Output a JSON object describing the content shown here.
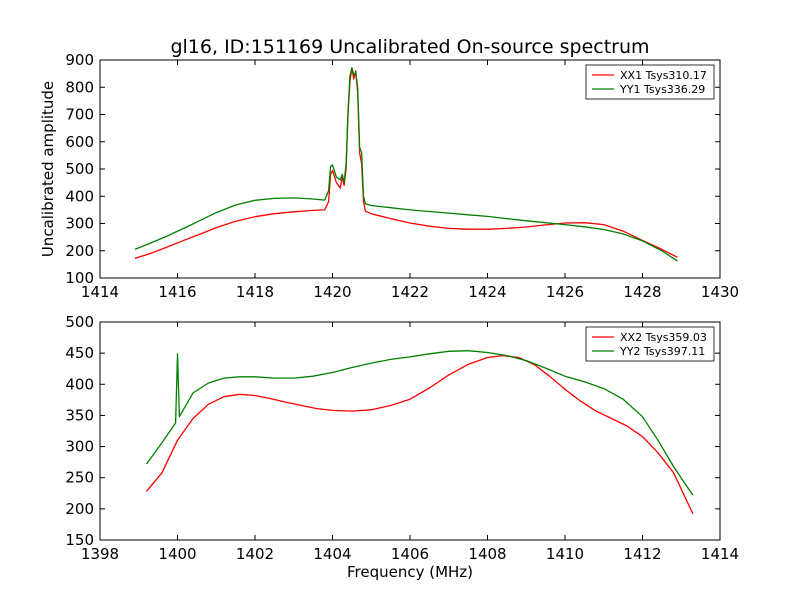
{
  "chart_data": [
    {
      "type": "line",
      "title": "gl16, ID:151169 Uncalibrated On-source spectrum",
      "xlabel": "",
      "ylabel": "Uncalibrated amplitude",
      "xlim": [
        1414,
        1430
      ],
      "ylim": [
        100,
        900
      ],
      "xticks": [
        1414,
        1416,
        1418,
        1420,
        1422,
        1424,
        1426,
        1428,
        1430
      ],
      "yticks": [
        100,
        200,
        300,
        400,
        500,
        600,
        700,
        800,
        900
      ],
      "legend_position": "top-right",
      "series": [
        {
          "name": "XX1 Tsys310.17",
          "color": "#ff0000",
          "points": [
            [
              1414.9,
              172
            ],
            [
              1415.3,
              190
            ],
            [
              1415.7,
              212
            ],
            [
              1416.2,
              240
            ],
            [
              1416.6,
              262
            ],
            [
              1417.0,
              285
            ],
            [
              1417.5,
              308
            ],
            [
              1418.0,
              325
            ],
            [
              1418.5,
              336
            ],
            [
              1419.0,
              343
            ],
            [
              1419.5,
              348
            ],
            [
              1419.8,
              350
            ],
            [
              1419.9,
              380
            ],
            [
              1419.95,
              480
            ],
            [
              1420.0,
              495
            ],
            [
              1420.1,
              450
            ],
            [
              1420.2,
              430
            ],
            [
              1420.25,
              470
            ],
            [
              1420.3,
              440
            ],
            [
              1420.35,
              500
            ],
            [
              1420.4,
              700
            ],
            [
              1420.45,
              820
            ],
            [
              1420.5,
              870
            ],
            [
              1420.55,
              830
            ],
            [
              1420.6,
              860
            ],
            [
              1420.65,
              780
            ],
            [
              1420.7,
              560
            ],
            [
              1420.75,
              520
            ],
            [
              1420.8,
              380
            ],
            [
              1420.85,
              345
            ],
            [
              1421.0,
              336
            ],
            [
              1421.5,
              318
            ],
            [
              1422.0,
              302
            ],
            [
              1422.5,
              290
            ],
            [
              1423.0,
              282
            ],
            [
              1423.5,
              279
            ],
            [
              1424.0,
              279
            ],
            [
              1424.5,
              282
            ],
            [
              1425.0,
              287
            ],
            [
              1425.5,
              295
            ],
            [
              1426.0,
              302
            ],
            [
              1426.5,
              303
            ],
            [
              1427.0,
              296
            ],
            [
              1427.5,
              272
            ],
            [
              1428.0,
              238
            ],
            [
              1428.5,
              205
            ],
            [
              1428.9,
              176
            ]
          ]
        },
        {
          "name": "YY1 Tsys336.29",
          "color": "#008000",
          "points": [
            [
              1414.9,
              205
            ],
            [
              1415.3,
              228
            ],
            [
              1415.7,
              252
            ],
            [
              1416.2,
              285
            ],
            [
              1416.6,
              312
            ],
            [
              1417.0,
              340
            ],
            [
              1417.5,
              368
            ],
            [
              1418.0,
              385
            ],
            [
              1418.5,
              392
            ],
            [
              1419.0,
              394
            ],
            [
              1419.5,
              390
            ],
            [
              1419.8,
              386
            ],
            [
              1419.9,
              420
            ],
            [
              1419.95,
              510
            ],
            [
              1420.0,
              515
            ],
            [
              1420.1,
              470
            ],
            [
              1420.2,
              460
            ],
            [
              1420.25,
              480
            ],
            [
              1420.3,
              450
            ],
            [
              1420.35,
              520
            ],
            [
              1420.4,
              710
            ],
            [
              1420.45,
              840
            ],
            [
              1420.5,
              872
            ],
            [
              1420.55,
              845
            ],
            [
              1420.6,
              855
            ],
            [
              1420.65,
              800
            ],
            [
              1420.7,
              580
            ],
            [
              1420.75,
              560
            ],
            [
              1420.8,
              400
            ],
            [
              1420.85,
              372
            ],
            [
              1421.0,
              366
            ],
            [
              1421.5,
              358
            ],
            [
              1422.0,
              350
            ],
            [
              1422.5,
              344
            ],
            [
              1423.0,
              338
            ],
            [
              1423.5,
              332
            ],
            [
              1424.0,
              326
            ],
            [
              1424.5,
              318
            ],
            [
              1425.0,
              310
            ],
            [
              1425.5,
              303
            ],
            [
              1426.0,
              296
            ],
            [
              1426.5,
              288
            ],
            [
              1427.0,
              278
            ],
            [
              1427.5,
              262
            ],
            [
              1428.0,
              236
            ],
            [
              1428.5,
              200
            ],
            [
              1428.9,
              162
            ]
          ]
        }
      ]
    },
    {
      "type": "line",
      "title": "",
      "xlabel": "Frequency (MHz)",
      "ylabel": "",
      "xlim": [
        1398,
        1414
      ],
      "ylim": [
        150,
        500
      ],
      "xticks": [
        1398,
        1400,
        1402,
        1404,
        1406,
        1408,
        1410,
        1412,
        1414
      ],
      "yticks": [
        150,
        200,
        250,
        300,
        350,
        400,
        450,
        500
      ],
      "legend_position": "top-right",
      "series": [
        {
          "name": "XX2 Tsys359.03",
          "color": "#ff0000",
          "points": [
            [
              1399.2,
              228
            ],
            [
              1399.6,
              258
            ],
            [
              1400.0,
              310
            ],
            [
              1400.4,
              345
            ],
            [
              1400.8,
              368
            ],
            [
              1401.2,
              380
            ],
            [
              1401.6,
              384
            ],
            [
              1402.0,
              382
            ],
            [
              1402.4,
              377
            ],
            [
              1402.8,
              371
            ],
            [
              1403.2,
              366
            ],
            [
              1403.6,
              361
            ],
            [
              1404.0,
              358
            ],
            [
              1404.5,
              357
            ],
            [
              1405.0,
              359
            ],
            [
              1405.5,
              366
            ],
            [
              1406.0,
              376
            ],
            [
              1406.5,
              394
            ],
            [
              1407.0,
              415
            ],
            [
              1407.5,
              432
            ],
            [
              1408.0,
              443
            ],
            [
              1408.4,
              446
            ],
            [
              1408.8,
              443
            ],
            [
              1409.2,
              432
            ],
            [
              1409.6,
              413
            ],
            [
              1410.0,
              392
            ],
            [
              1410.4,
              373
            ],
            [
              1410.8,
              357
            ],
            [
              1411.2,
              345
            ],
            [
              1411.6,
              333
            ],
            [
              1412.0,
              316
            ],
            [
              1412.4,
              290
            ],
            [
              1412.8,
              258
            ],
            [
              1413.3,
              192
            ]
          ]
        },
        {
          "name": "YY2 Tsys397.11",
          "color": "#008000",
          "points": [
            [
              1399.2,
              272
            ],
            [
              1399.6,
              306
            ],
            [
              1399.95,
              338
            ],
            [
              1400.0,
              449
            ],
            [
              1400.05,
              348
            ],
            [
              1400.4,
              386
            ],
            [
              1400.8,
              402
            ],
            [
              1401.2,
              410
            ],
            [
              1401.6,
              412
            ],
            [
              1402.0,
              412
            ],
            [
              1402.5,
              410
            ],
            [
              1403.0,
              410
            ],
            [
              1403.5,
              413
            ],
            [
              1404.0,
              419
            ],
            [
              1404.5,
              427
            ],
            [
              1405.0,
              434
            ],
            [
              1405.5,
              440
            ],
            [
              1406.0,
              444
            ],
            [
              1406.5,
              449
            ],
            [
              1407.0,
              453
            ],
            [
              1407.5,
              454
            ],
            [
              1408.0,
              451
            ],
            [
              1408.5,
              446
            ],
            [
              1409.0,
              438
            ],
            [
              1409.5,
              426
            ],
            [
              1410.0,
              413
            ],
            [
              1410.5,
              404
            ],
            [
              1411.0,
              393
            ],
            [
              1411.5,
              376
            ],
            [
              1412.0,
              348
            ],
            [
              1412.4,
              310
            ],
            [
              1412.8,
              268
            ],
            [
              1413.3,
              222
            ]
          ]
        }
      ]
    }
  ]
}
